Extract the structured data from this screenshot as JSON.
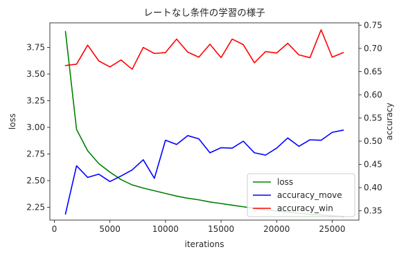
{
  "chart_data": {
    "type": "line",
    "title": "レートなし条件の学習の様子",
    "xlabel": "iterations",
    "ylabel_left": "loss",
    "ylabel_right": "accuracy",
    "xlim": [
      -400,
      27400
    ],
    "ylim_left": [
      2.13,
      3.98
    ],
    "ylim_right": [
      0.33,
      0.755
    ],
    "xticks": [
      0,
      5000,
      10000,
      15000,
      20000,
      25000
    ],
    "yticks_left": [
      2.25,
      2.5,
      2.75,
      3.0,
      3.25,
      3.5,
      3.75
    ],
    "yticks_right": [
      0.35,
      0.4,
      0.45,
      0.5,
      0.55,
      0.6,
      0.65,
      0.7,
      0.75
    ],
    "grid": false,
    "legend_placement": "lower-right",
    "x": [
      1000,
      2000,
      3000,
      4000,
      5000,
      6000,
      7000,
      8000,
      9000,
      10000,
      11000,
      12000,
      13000,
      14000,
      15000,
      16000,
      17000,
      18000,
      19000,
      20000,
      21000,
      22000,
      23000,
      24000,
      25000,
      26000
    ],
    "series": [
      {
        "name": "loss",
        "axis": "left",
        "color": "#008000",
        "values": [
          3.9,
          2.98,
          2.78,
          2.66,
          2.58,
          2.51,
          2.46,
          2.43,
          2.405,
          2.38,
          2.355,
          2.335,
          2.32,
          2.3,
          2.285,
          2.27,
          2.255,
          2.24,
          2.225,
          2.215,
          2.205,
          2.195,
          2.185,
          2.178,
          2.17,
          2.163
        ]
      },
      {
        "name": "accuracy_move",
        "axis": "right",
        "color": "#0000ff",
        "values": [
          0.343,
          0.447,
          0.422,
          0.429,
          0.413,
          0.425,
          0.438,
          0.46,
          0.42,
          0.502,
          0.493,
          0.512,
          0.505,
          0.475,
          0.486,
          0.485,
          0.5,
          0.475,
          0.47,
          0.485,
          0.507,
          0.489,
          0.503,
          0.502,
          0.519,
          0.524
        ]
      },
      {
        "name": "accuracy_win",
        "axis": "right",
        "color": "#ff0000",
        "values": [
          0.663,
          0.666,
          0.707,
          0.673,
          0.66,
          0.675,
          0.655,
          0.702,
          0.689,
          0.691,
          0.72,
          0.692,
          0.681,
          0.709,
          0.68,
          0.72,
          0.708,
          0.669,
          0.693,
          0.69,
          0.711,
          0.686,
          0.68,
          0.74,
          0.681,
          0.691
        ]
      }
    ]
  }
}
